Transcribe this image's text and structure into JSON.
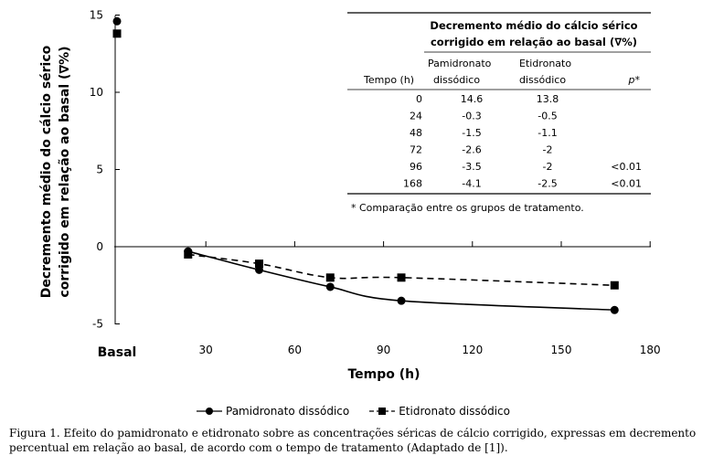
{
  "chart_data": {
    "type": "line",
    "xlabel": "Tempo (h)",
    "ylabel_line1": "Decremento médio do cálcio sérico",
    "ylabel_line2": "corrigido em relação ao basal (∇%)",
    "x_baseline_label": "Basal",
    "x_ticks": [
      30,
      60,
      90,
      120,
      150,
      180
    ],
    "y_ticks": [
      15,
      10,
      5,
      0,
      -5
    ],
    "xlim": [
      0,
      180
    ],
    "ylim": [
      -5,
      15
    ],
    "series": [
      {
        "name": "Pamidronato dissódico",
        "marker": "circle",
        "line_style": "solid",
        "color": "#000000",
        "x": [
          0,
          24,
          48,
          72,
          96,
          168
        ],
        "y": [
          14.6,
          -0.3,
          -1.5,
          -2.6,
          -3.5,
          -4.1
        ]
      },
      {
        "name": "Etidronato dissódico",
        "marker": "square",
        "line_style": "dashed",
        "color": "#000000",
        "x": [
          0,
          24,
          48,
          72,
          96,
          168
        ],
        "y": [
          13.8,
          -0.5,
          -1.1,
          -2,
          -2,
          -2.5
        ]
      }
    ],
    "inset_table": {
      "title_line1": "Decremento médio do cálcio sérico",
      "title_line2": "corrigido em relação ao basal (∇%)",
      "col_time": "Tempo (h)",
      "col_pam_line1": "Pamidronato",
      "col_pam_line2": "dissódico",
      "col_eti_line1": "Etidronato",
      "col_eti_line2": "dissódico",
      "col_p": "p*",
      "rows": [
        {
          "t": "0",
          "pam": "14.6",
          "eti": "13.8",
          "p": ""
        },
        {
          "t": "24",
          "pam": "-0.3",
          "eti": "-0.5",
          "p": ""
        },
        {
          "t": "48",
          "pam": "-1.5",
          "eti": "-1.1",
          "p": ""
        },
        {
          "t": "72",
          "pam": "-2.6",
          "eti": "-2",
          "p": ""
        },
        {
          "t": "96",
          "pam": "-3.5",
          "eti": "-2",
          "p": "<0.01"
        },
        {
          "t": "168",
          "pam": "-4.1",
          "eti": "-2.5",
          "p": "<0.01"
        }
      ],
      "footnote": "* Comparação entre os grupos de tratamento."
    }
  },
  "legend": {
    "pam_label": "Pamidronato dissódico",
    "eti_label": "Etidronato dissódico"
  },
  "caption": {
    "text": "Figura 1. Efeito do pamidronato e etidronato sobre as concentrações séricas de cálcio corrigido, expressas em decremento percentual em relação ao basal, de acordo com o tempo de tratamento (Adaptado de [1])."
  }
}
